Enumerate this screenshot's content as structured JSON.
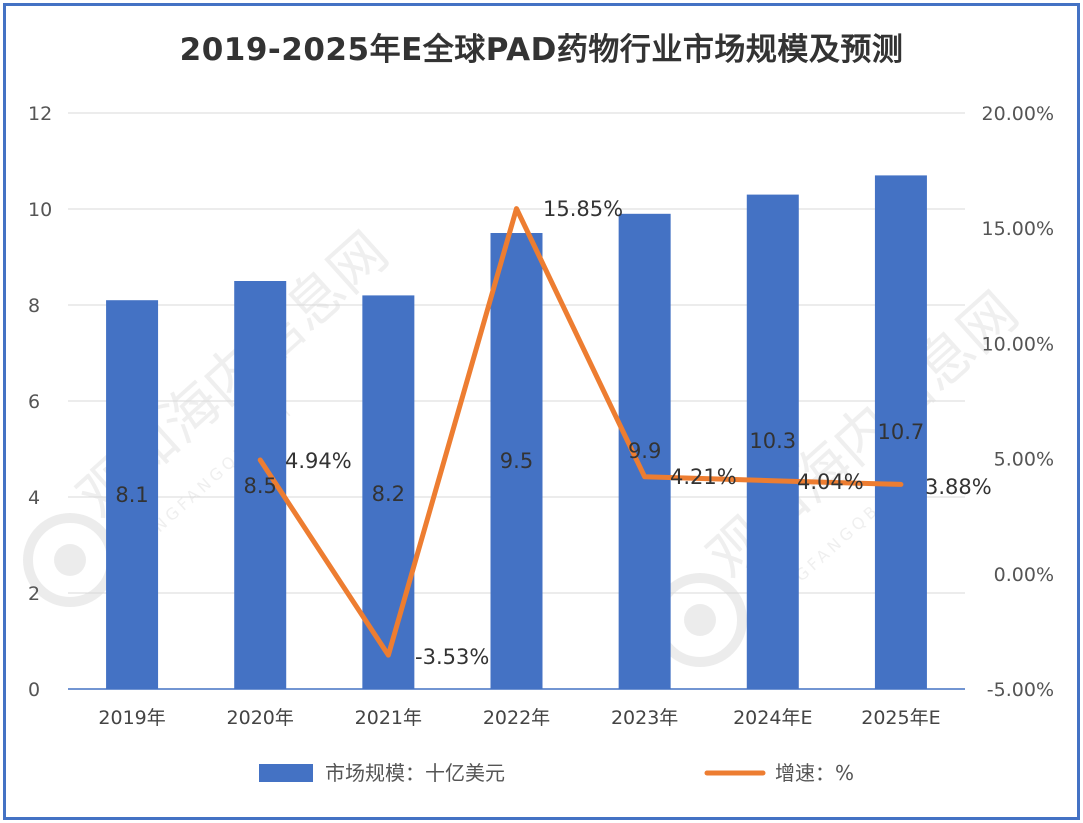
{
  "chart_data": {
    "type": "bar",
    "title": "2019-2025年E全球PAD药物行业市场规模及预测",
    "categories": [
      "2019年",
      "2020年",
      "2021年",
      "2022年",
      "2023年",
      "2024年E",
      "2025年E"
    ],
    "series": [
      {
        "name": "市场规模：十亿美元",
        "type": "bar",
        "axis": "left",
        "color": "#4472c4",
        "values": [
          8.1,
          8.5,
          8.2,
          9.5,
          9.9,
          10.3,
          10.7
        ],
        "labels": [
          "8.1",
          "8.5",
          "8.2",
          "9.5",
          "9.9",
          "10.3",
          "10.7"
        ]
      },
      {
        "name": "增速：%",
        "type": "line",
        "axis": "right",
        "color": "#ed7d31",
        "values": [
          null,
          4.94,
          -3.53,
          15.85,
          4.21,
          4.04,
          3.88
        ],
        "labels": [
          null,
          "4.94%",
          "-3.53%",
          "15.85%",
          "4.21%",
          "4.04%",
          "3.88%"
        ]
      }
    ],
    "y_left": {
      "ylim": [
        0,
        12
      ],
      "ticks": [
        "0",
        "2",
        "4",
        "6",
        "8",
        "10",
        "12"
      ]
    },
    "y_right": {
      "ylim": [
        -5,
        20
      ],
      "ticks": [
        "-5.00%",
        "0.00%",
        "5.00%",
        "10.00%",
        "15.00%",
        "20.00%"
      ]
    },
    "grid": true,
    "legend": "bottom"
  },
  "watermark": {
    "text": "观知海内信息网",
    "sub": "DONGFANGQB.COM"
  }
}
